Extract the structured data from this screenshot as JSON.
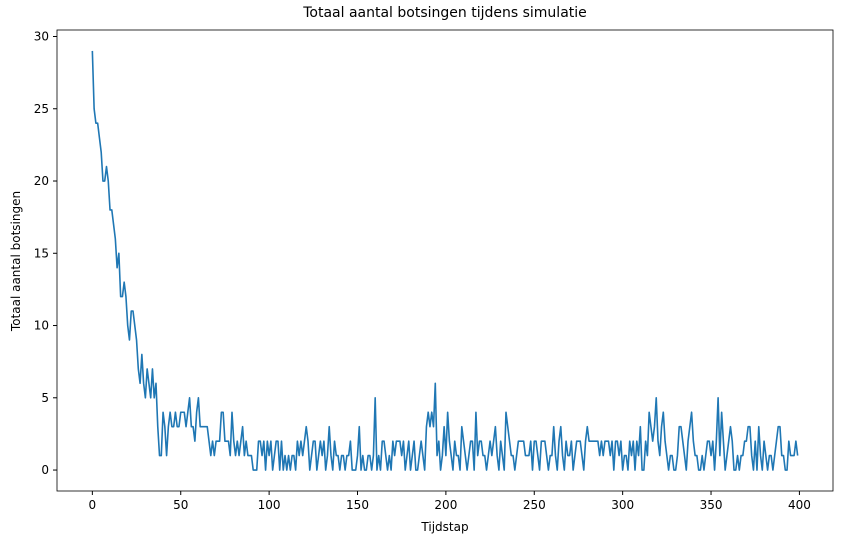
{
  "chart_data": {
    "type": "line",
    "title": "Totaal aantal botsingen tijdens simulatie",
    "x_label": "Tijdstap",
    "y_label": "Totaal aantal botsingen",
    "x": [
      0,
      1,
      2,
      3,
      4,
      5,
      6,
      7,
      8,
      9,
      10,
      11,
      12,
      13,
      14,
      15,
      16,
      17,
      18,
      19,
      20,
      21,
      22,
      23,
      24,
      25,
      26,
      27,
      28,
      29,
      30,
      31,
      32,
      33,
      34,
      35,
      36,
      37,
      38,
      39,
      40,
      41,
      42,
      43,
      44,
      45,
      46,
      47,
      48,
      49,
      50,
      51,
      52,
      53,
      54,
      55,
      56,
      57,
      58,
      59,
      60,
      61,
      62,
      63,
      64,
      65,
      66,
      67,
      68,
      69,
      70,
      71,
      72,
      73,
      74,
      75,
      76,
      77,
      78,
      79,
      80,
      81,
      82,
      83,
      84,
      85,
      86,
      87,
      88,
      89,
      90,
      91,
      92,
      93,
      94,
      95,
      96,
      97,
      98,
      99,
      100,
      101,
      102,
      103,
      104,
      105,
      106,
      107,
      108,
      109,
      110,
      111,
      112,
      113,
      114,
      115,
      116,
      117,
      118,
      119,
      120,
      121,
      122,
      123,
      124,
      125,
      126,
      127,
      128,
      129,
      130,
      131,
      132,
      133,
      134,
      135,
      136,
      137,
      138,
      139,
      140,
      141,
      142,
      143,
      144,
      145,
      146,
      147,
      148,
      149,
      150,
      151,
      152,
      153,
      154,
      155,
      156,
      157,
      158,
      159,
      160,
      161,
      162,
      163,
      164,
      165,
      166,
      167,
      168,
      169,
      170,
      171,
      172,
      173,
      174,
      175,
      176,
      177,
      178,
      179,
      180,
      181,
      182,
      183,
      184,
      185,
      186,
      187,
      188,
      189,
      190,
      191,
      192,
      193,
      194,
      195,
      196,
      197,
      198,
      199,
      200,
      201,
      202,
      203,
      204,
      205,
      206,
      207,
      208,
      209,
      210,
      211,
      212,
      213,
      214,
      215,
      216,
      217,
      218,
      219,
      220,
      221,
      222,
      223,
      224,
      225,
      226,
      227,
      228,
      229,
      230,
      231,
      232,
      233,
      234,
      235,
      236,
      237,
      238,
      239,
      240,
      241,
      242,
      243,
      244,
      245,
      246,
      247,
      248,
      249,
      250,
      251,
      252,
      253,
      254,
      255,
      256,
      257,
      258,
      259,
      260,
      261,
      262,
      263,
      264,
      265,
      266,
      267,
      268,
      269,
      270,
      271,
      272,
      273,
      274,
      275,
      276,
      277,
      278,
      279,
      280,
      281,
      282,
      283,
      284,
      285,
      286,
      287,
      288,
      289,
      290,
      291,
      292,
      293,
      294,
      295,
      296,
      297,
      298,
      299,
      300,
      301,
      302,
      303,
      304,
      305,
      306,
      307,
      308,
      309,
      310,
      311,
      312,
      313,
      314,
      315,
      316,
      317,
      318,
      319,
      320,
      321,
      322,
      323,
      324,
      325,
      326,
      327,
      328,
      329,
      330,
      331,
      332,
      333,
      334,
      335,
      336,
      337,
      338,
      339,
      340,
      341,
      342,
      343,
      344,
      345,
      346,
      347,
      348,
      349,
      350,
      351,
      352,
      353,
      354,
      355,
      356,
      357,
      358,
      359,
      360,
      361,
      362,
      363,
      364,
      365,
      366,
      367,
      368,
      369,
      370,
      371,
      372,
      373,
      374,
      375,
      376,
      377,
      378,
      379,
      380,
      381,
      382,
      383,
      384,
      385,
      386,
      387,
      388,
      389,
      390,
      391,
      392,
      393,
      394,
      395,
      396,
      397,
      398,
      399
    ],
    "series": [
      {
        "color": "#1f77b4",
        "values": [
          29,
          25,
          24,
          24,
          23,
          22,
          20,
          20,
          21,
          20,
          18,
          18,
          17,
          16,
          14,
          15,
          12,
          12,
          13,
          12,
          10,
          9,
          11,
          11,
          10,
          9,
          7,
          6,
          8,
          6,
          5,
          7,
          6,
          5,
          7,
          5,
          6,
          3,
          1,
          1,
          4,
          3,
          1,
          3,
          4,
          3,
          3,
          4,
          3,
          3,
          4,
          4,
          4,
          3,
          4,
          5,
          3,
          3,
          2,
          4,
          5,
          3,
          3,
          3,
          3,
          3,
          2,
          1,
          2,
          1,
          2,
          2,
          2,
          4,
          4,
          2,
          2,
          2,
          1,
          4,
          2,
          1,
          2,
          1,
          2,
          3,
          1,
          2,
          1,
          1,
          1,
          0,
          0,
          0,
          2,
          2,
          1,
          2,
          0,
          2,
          1,
          2,
          0,
          1,
          2,
          2,
          0,
          2,
          0,
          1,
          0,
          1,
          0,
          1,
          1,
          0,
          2,
          1,
          2,
          1,
          2,
          3,
          2,
          0,
          1,
          2,
          2,
          0,
          1,
          2,
          1,
          2,
          0,
          1,
          3,
          1,
          0,
          2,
          1,
          1,
          0,
          1,
          1,
          0,
          1,
          1,
          2,
          0,
          0,
          0,
          1,
          3,
          0,
          1,
          0,
          0,
          1,
          1,
          0,
          1,
          5,
          0,
          1,
          0,
          2,
          2,
          1,
          0,
          1,
          0,
          2,
          1,
          2,
          2,
          2,
          1,
          2,
          0,
          1,
          2,
          0,
          1,
          2,
          0,
          0,
          1,
          2,
          1,
          0,
          3,
          4,
          3,
          4,
          3,
          6,
          1,
          2,
          0,
          1,
          3,
          1,
          4,
          2,
          1,
          0,
          2,
          1,
          1,
          0,
          3,
          2,
          1,
          0,
          1,
          2,
          2,
          0,
          4,
          1,
          2,
          2,
          1,
          1,
          0,
          1,
          2,
          1,
          2,
          3,
          1,
          0,
          2,
          1,
          0,
          4,
          3,
          2,
          1,
          1,
          0,
          1,
          2,
          2,
          2,
          2,
          1,
          1,
          1,
          2,
          0,
          2,
          2,
          1,
          0,
          2,
          2,
          2,
          1,
          0,
          1,
          1,
          3,
          1,
          0,
          2,
          3,
          1,
          0,
          2,
          1,
          1,
          2,
          0,
          1,
          2,
          2,
          2,
          1,
          0,
          2,
          3,
          2,
          2,
          2,
          2,
          2,
          2,
          1,
          2,
          1,
          2,
          2,
          2,
          1,
          2,
          0,
          2,
          2,
          1,
          2,
          0,
          1,
          1,
          0,
          2,
          1,
          2,
          0,
          2,
          1,
          3,
          0,
          0,
          2,
          1,
          4,
          3,
          2,
          3,
          5,
          2,
          1,
          3,
          4,
          2,
          1,
          0,
          1,
          1,
          0,
          0,
          1,
          3,
          3,
          2,
          1,
          0,
          2,
          3,
          4,
          2,
          1,
          1,
          0,
          0,
          1,
          0,
          1,
          2,
          2,
          1,
          2,
          0,
          2,
          5,
          1,
          4,
          2,
          0,
          1,
          2,
          3,
          2,
          0,
          0,
          1,
          0,
          1,
          1,
          2,
          2,
          3,
          3,
          1,
          0,
          2,
          0,
          3,
          1,
          0,
          2,
          1,
          0,
          1,
          1,
          0,
          1,
          2,
          3,
          3,
          1,
          1,
          0,
          0,
          2,
          1,
          1,
          1,
          2,
          1
        ]
      }
    ],
    "xlim": [
      -20,
      419
    ],
    "ylim": [
      -1.45,
      30.45
    ],
    "xticks": [
      0,
      50,
      100,
      150,
      200,
      250,
      300,
      350,
      400
    ],
    "yticks": [
      0,
      5,
      10,
      15,
      20,
      25,
      30
    ],
    "grid": false
  }
}
